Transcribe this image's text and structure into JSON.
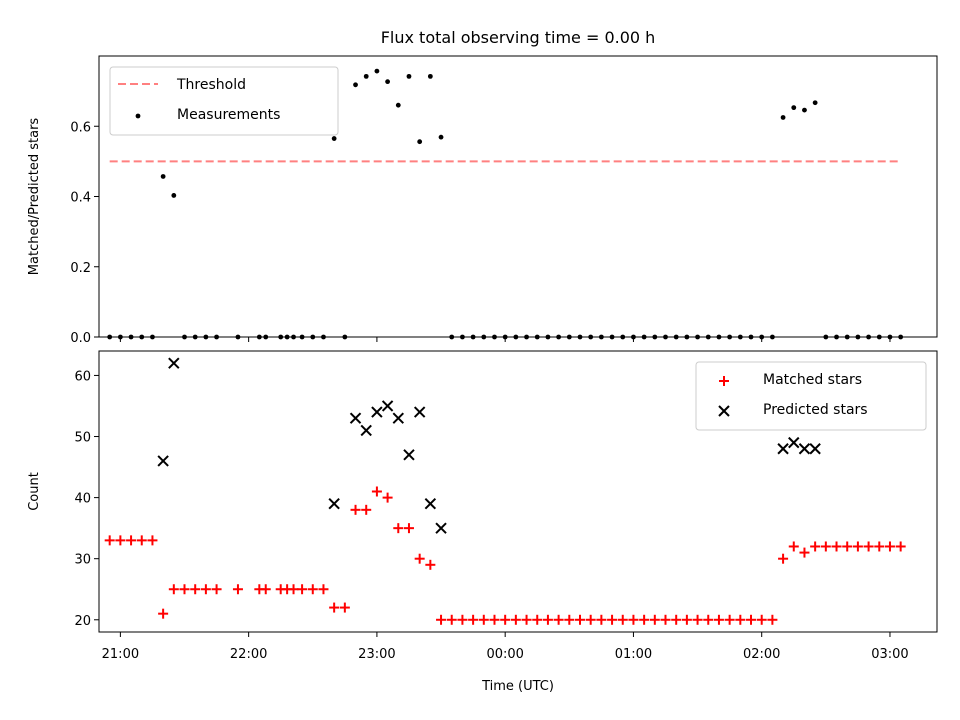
{
  "chart_data": [
    {
      "type": "scatter",
      "title": "Flux total observing time = 0.00 h",
      "xlabel": "",
      "ylabel": "Matched/Predicted stars",
      "xlim": [
        "20:50",
        "03:22"
      ],
      "ylim": [
        0,
        0.8
      ],
      "yticks": [
        0.0,
        0.2,
        0.4,
        0.6
      ],
      "ytick_labels": [
        "0.0",
        "0.2",
        "0.4",
        "0.6"
      ],
      "legend": {
        "placement": "upper left",
        "entries": [
          "Threshold",
          "Measurements"
        ]
      },
      "threshold": {
        "name": "Threshold",
        "y": 0.5,
        "x_start": "20:55",
        "x_end": "03:05",
        "color": "#ff8080",
        "style": "dashed"
      },
      "series": [
        {
          "name": "Measurements",
          "marker": "dot",
          "color": "#000000",
          "points": [
            [
              "20:55",
              0
            ],
            [
              "21:00",
              0
            ],
            [
              "21:05",
              0
            ],
            [
              "21:10",
              0
            ],
            [
              "21:15",
              0
            ],
            [
              "21:20",
              0.457
            ],
            [
              "21:25",
              0.403
            ],
            [
              "21:30",
              0
            ],
            [
              "21:35",
              0
            ],
            [
              "21:40",
              0
            ],
            [
              "21:45",
              0
            ],
            [
              "21:55",
              0
            ],
            [
              "22:05",
              0
            ],
            [
              "22:08",
              0
            ],
            [
              "22:15",
              0
            ],
            [
              "22:18",
              0
            ],
            [
              "22:21",
              0
            ],
            [
              "22:25",
              0
            ],
            [
              "22:30",
              0
            ],
            [
              "22:35",
              0
            ],
            [
              "22:40",
              0.565
            ],
            [
              "22:45",
              0
            ],
            [
              "22:50",
              0.718
            ],
            [
              "22:55",
              0.742
            ],
            [
              "23:00",
              0.757
            ],
            [
              "23:05",
              0.727
            ],
            [
              "23:10",
              0.66
            ],
            [
              "23:15",
              0.742
            ],
            [
              "23:20",
              0.556
            ],
            [
              "23:25",
              0.742
            ],
            [
              "23:30",
              0.569
            ],
            [
              "23:35",
              0
            ],
            [
              "23:40",
              0
            ],
            [
              "23:45",
              0
            ],
            [
              "23:50",
              0
            ],
            [
              "23:55",
              0
            ],
            [
              "00:00",
              0
            ],
            [
              "00:05",
              0
            ],
            [
              "00:10",
              0
            ],
            [
              "00:15",
              0
            ],
            [
              "00:20",
              0
            ],
            [
              "00:25",
              0
            ],
            [
              "00:30",
              0
            ],
            [
              "00:35",
              0
            ],
            [
              "00:40",
              0
            ],
            [
              "00:45",
              0
            ],
            [
              "00:50",
              0
            ],
            [
              "00:55",
              0
            ],
            [
              "01:00",
              0
            ],
            [
              "01:05",
              0
            ],
            [
              "01:10",
              0
            ],
            [
              "01:15",
              0
            ],
            [
              "01:20",
              0
            ],
            [
              "01:25",
              0
            ],
            [
              "01:30",
              0
            ],
            [
              "01:35",
              0
            ],
            [
              "01:40",
              0
            ],
            [
              "01:45",
              0
            ],
            [
              "01:50",
              0
            ],
            [
              "01:55",
              0
            ],
            [
              "02:00",
              0
            ],
            [
              "02:05",
              0
            ],
            [
              "02:10",
              0.625
            ],
            [
              "02:15",
              0.653
            ],
            [
              "02:20",
              0.646
            ],
            [
              "02:25",
              0.667
            ],
            [
              "02:30",
              0
            ],
            [
              "02:35",
              0
            ],
            [
              "02:40",
              0
            ],
            [
              "02:45",
              0
            ],
            [
              "02:50",
              0
            ],
            [
              "02:55",
              0
            ],
            [
              "03:00",
              0
            ],
            [
              "03:05",
              0
            ]
          ]
        }
      ]
    },
    {
      "type": "scatter",
      "title": "",
      "xlabel": "Time (UTC)",
      "ylabel": "Count",
      "xlim": [
        "20:50",
        "03:22"
      ],
      "ylim": [
        18,
        64
      ],
      "yticks": [
        20,
        30,
        40,
        50,
        60
      ],
      "ytick_labels": [
        "20",
        "30",
        "40",
        "50",
        "60"
      ],
      "xticks": [
        "21:00",
        "22:00",
        "23:00",
        "00:00",
        "01:00",
        "02:00",
        "03:00"
      ],
      "xtick_labels": [
        "21:00",
        "22:00",
        "23:00",
        "00:00",
        "01:00",
        "02:00",
        "03:00"
      ],
      "legend": {
        "placement": "upper right",
        "entries": [
          "Matched stars",
          "Predicted stars"
        ]
      },
      "series": [
        {
          "name": "Matched stars",
          "marker": "plus",
          "color": "#ff0000",
          "points": [
            [
              "20:55",
              33
            ],
            [
              "21:00",
              33
            ],
            [
              "21:05",
              33
            ],
            [
              "21:10",
              33
            ],
            [
              "21:15",
              33
            ],
            [
              "21:20",
              21
            ],
            [
              "21:25",
              25
            ],
            [
              "21:30",
              25
            ],
            [
              "21:35",
              25
            ],
            [
              "21:40",
              25
            ],
            [
              "21:45",
              25
            ],
            [
              "21:55",
              25
            ],
            [
              "22:05",
              25
            ],
            [
              "22:08",
              25
            ],
            [
              "22:15",
              25
            ],
            [
              "22:18",
              25
            ],
            [
              "22:21",
              25
            ],
            [
              "22:25",
              25
            ],
            [
              "22:30",
              25
            ],
            [
              "22:35",
              25
            ],
            [
              "22:40",
              22
            ],
            [
              "22:45",
              22
            ],
            [
              "22:50",
              38
            ],
            [
              "22:55",
              38
            ],
            [
              "23:00",
              41
            ],
            [
              "23:05",
              40
            ],
            [
              "23:10",
              35
            ],
            [
              "23:15",
              35
            ],
            [
              "23:20",
              30
            ],
            [
              "23:25",
              29
            ],
            [
              "23:30",
              20
            ],
            [
              "23:35",
              20
            ],
            [
              "23:40",
              20
            ],
            [
              "23:45",
              20
            ],
            [
              "23:50",
              20
            ],
            [
              "23:55",
              20
            ],
            [
              "00:00",
              20
            ],
            [
              "00:05",
              20
            ],
            [
              "00:10",
              20
            ],
            [
              "00:15",
              20
            ],
            [
              "00:20",
              20
            ],
            [
              "00:25",
              20
            ],
            [
              "00:30",
              20
            ],
            [
              "00:35",
              20
            ],
            [
              "00:40",
              20
            ],
            [
              "00:45",
              20
            ],
            [
              "00:50",
              20
            ],
            [
              "00:55",
              20
            ],
            [
              "01:00",
              20
            ],
            [
              "01:05",
              20
            ],
            [
              "01:10",
              20
            ],
            [
              "01:15",
              20
            ],
            [
              "01:20",
              20
            ],
            [
              "01:25",
              20
            ],
            [
              "01:30",
              20
            ],
            [
              "01:35",
              20
            ],
            [
              "01:40",
              20
            ],
            [
              "01:45",
              20
            ],
            [
              "01:50",
              20
            ],
            [
              "01:55",
              20
            ],
            [
              "02:00",
              20
            ],
            [
              "02:05",
              20
            ],
            [
              "02:10",
              30
            ],
            [
              "02:15",
              32
            ],
            [
              "02:20",
              31
            ],
            [
              "02:25",
              32
            ],
            [
              "02:30",
              32
            ],
            [
              "02:35",
              32
            ],
            [
              "02:40",
              32
            ],
            [
              "02:45",
              32
            ],
            [
              "02:50",
              32
            ],
            [
              "02:55",
              32
            ],
            [
              "03:00",
              32
            ],
            [
              "03:05",
              32
            ]
          ]
        },
        {
          "name": "Predicted stars",
          "marker": "x",
          "color": "#000000",
          "points": [
            [
              "21:20",
              46
            ],
            [
              "21:25",
              62
            ],
            [
              "22:40",
              39
            ],
            [
              "22:50",
              53
            ],
            [
              "22:55",
              51
            ],
            [
              "23:00",
              54
            ],
            [
              "23:05",
              55
            ],
            [
              "23:10",
              53
            ],
            [
              "23:15",
              47
            ],
            [
              "23:20",
              54
            ],
            [
              "23:25",
              39
            ],
            [
              "23:30",
              35
            ],
            [
              "02:10",
              48
            ],
            [
              "02:15",
              49
            ],
            [
              "02:20",
              48
            ],
            [
              "02:25",
              48
            ]
          ]
        }
      ]
    }
  ]
}
